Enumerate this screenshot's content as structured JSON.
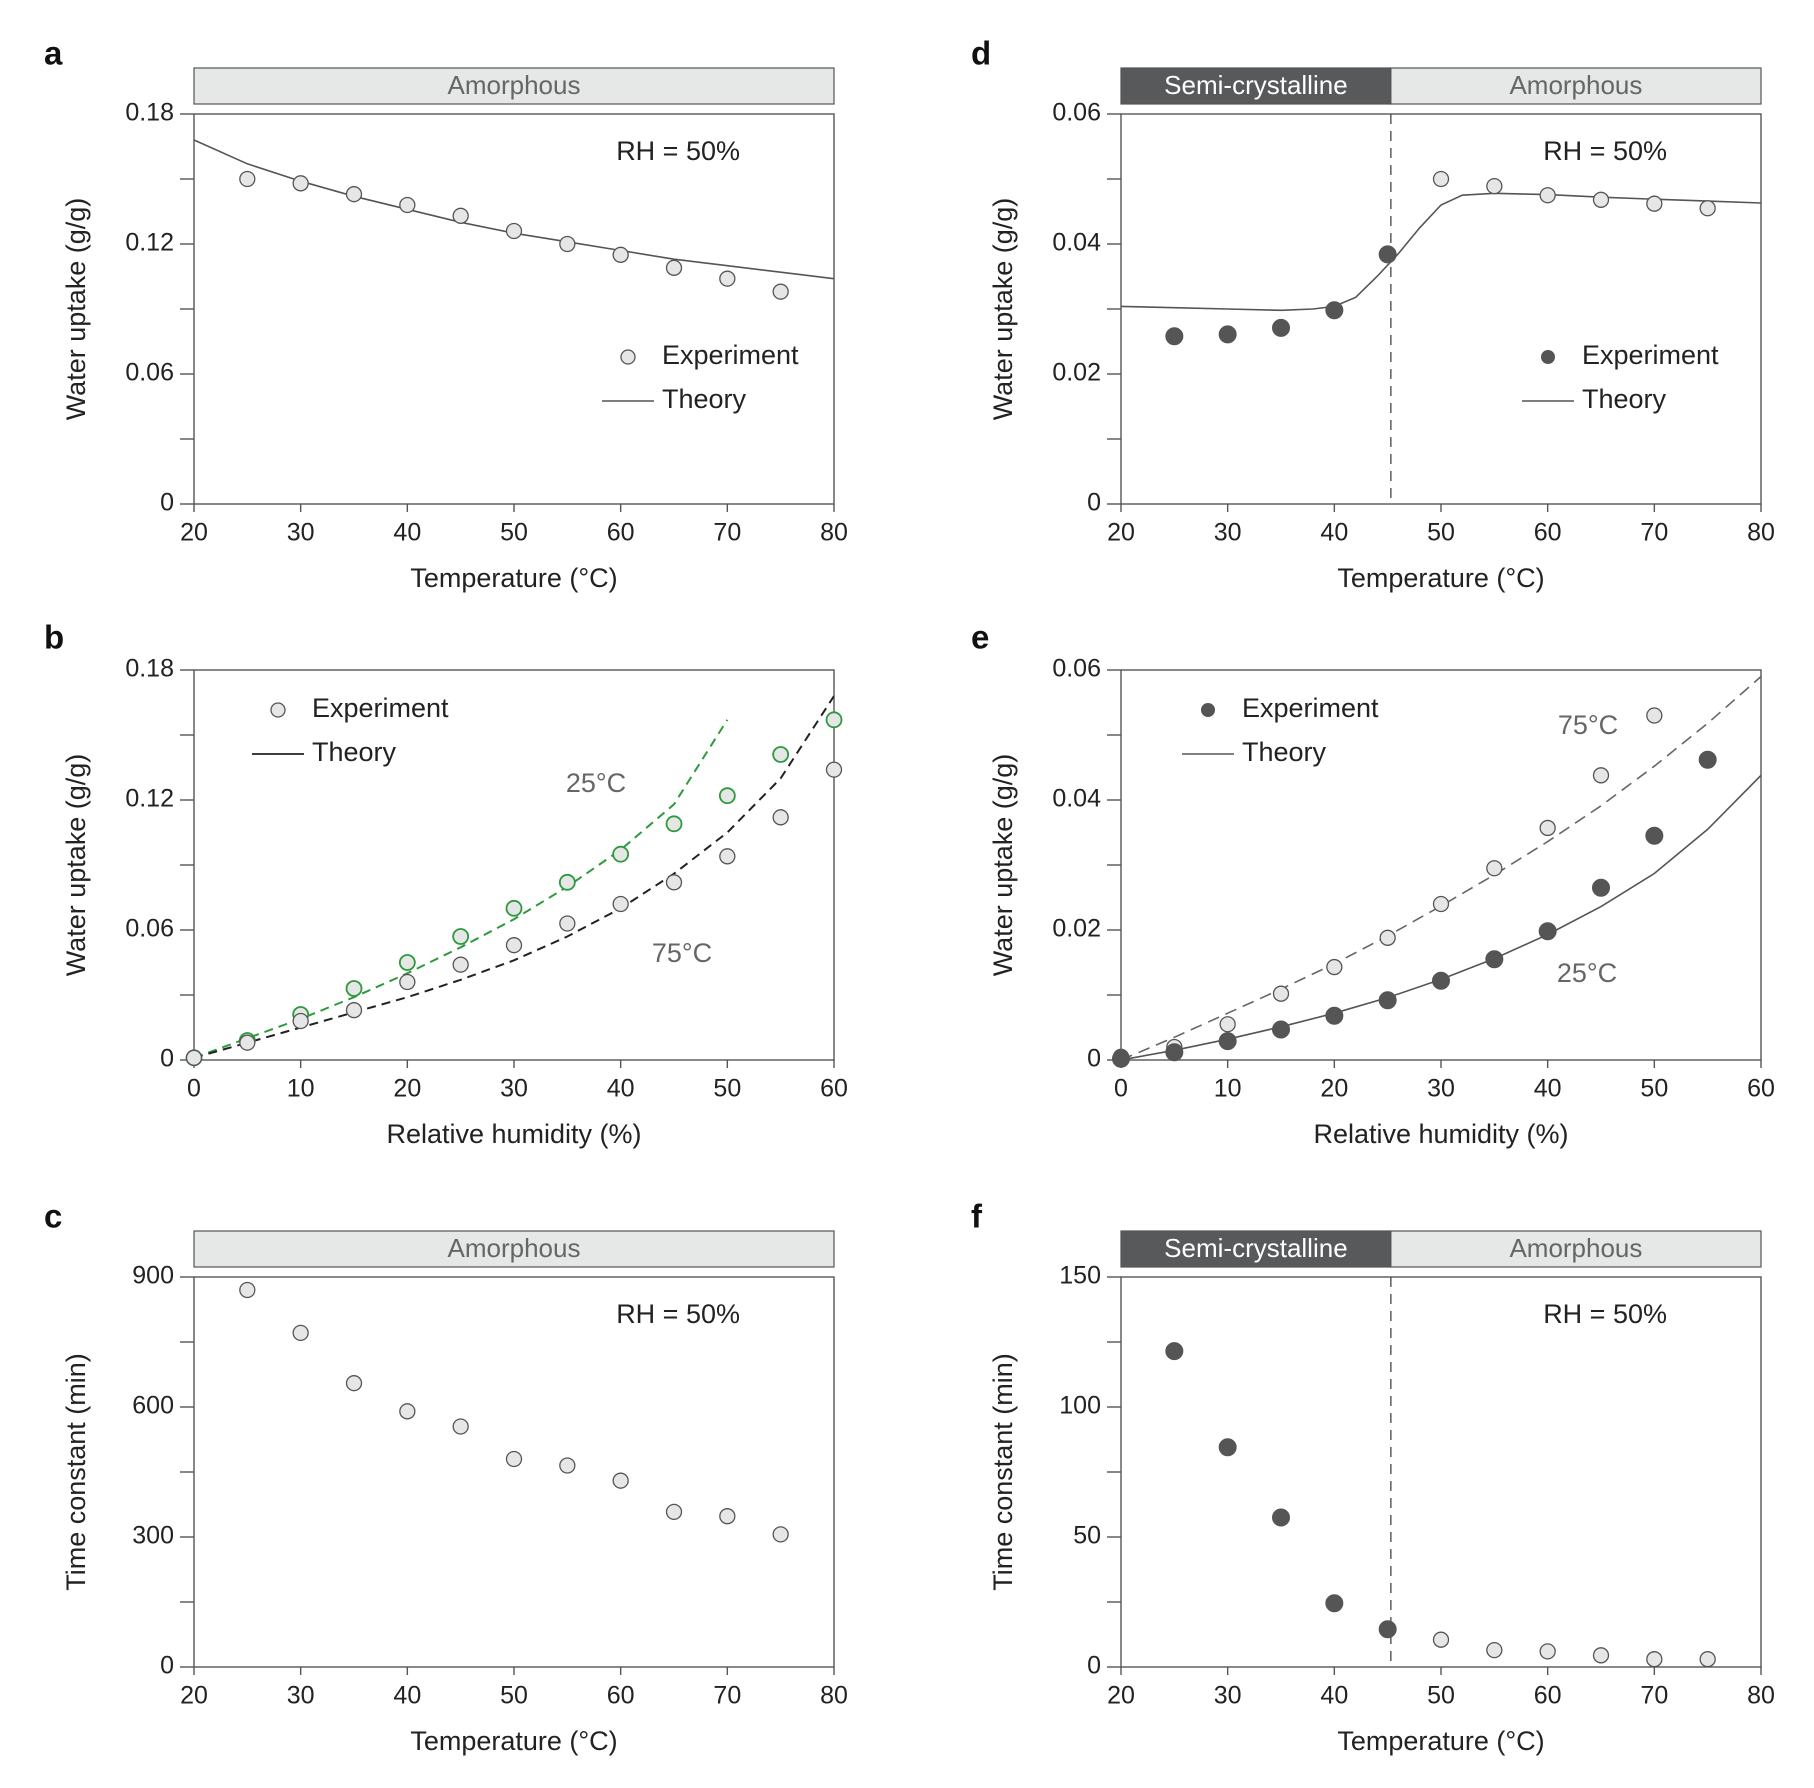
{
  "colors": {
    "axis": "#555555",
    "text": "#222222",
    "label_gray": "#666666",
    "marker_light": "#e6e6e6",
    "marker_dark": "#555555",
    "green": "#2e9a3e",
    "band_light": "#e6e7e7",
    "band_dark": "#58595b"
  },
  "chart_data": [
    {
      "panel": "a",
      "type": "scatter",
      "band": [
        {
          "label": "Amorphous",
          "from": 20,
          "to": 80,
          "style": "light"
        }
      ],
      "xlabel": "Temperature (°C)",
      "ylabel": "Water uptake (g/g)",
      "xlim": [
        20,
        80
      ],
      "ylim": [
        0,
        0.18
      ],
      "xticks": [
        "20",
        "30",
        "40",
        "50",
        "60",
        "70",
        "80"
      ],
      "yticks": [
        "0",
        "0.06",
        "0.12",
        "0.18"
      ],
      "annotations": [
        {
          "text": "RH = 50%"
        }
      ],
      "legend": {
        "position": "center-right",
        "entries": [
          {
            "label": "Experiment",
            "kind": "marker",
            "style": "light"
          },
          {
            "label": "Theory",
            "kind": "line",
            "style": "solid-gray"
          }
        ]
      },
      "series": [
        {
          "name": "Experiment",
          "kind": "scatter",
          "style": "light",
          "x": [
            25,
            30,
            35,
            40,
            45,
            50,
            55,
            60,
            65,
            70,
            75
          ],
          "y": [
            0.15,
            0.148,
            0.143,
            0.138,
            0.133,
            0.126,
            0.12,
            0.115,
            0.109,
            0.104,
            0.098
          ]
        },
        {
          "name": "Theory",
          "kind": "line",
          "style": "solid-gray",
          "x": [
            20,
            25,
            30,
            35,
            40,
            45,
            50,
            55,
            60,
            65,
            70,
            75,
            80
          ],
          "y": [
            0.168,
            0.157,
            0.149,
            0.142,
            0.136,
            0.13,
            0.125,
            0.121,
            0.117,
            0.113,
            0.11,
            0.107,
            0.104
          ]
        }
      ]
    },
    {
      "panel": "b",
      "type": "scatter",
      "xlabel": "Relative humidity (%)",
      "ylabel": "Water uptake (g/g)",
      "xlim": [
        0,
        60
      ],
      "ylim": [
        0,
        0.18
      ],
      "xticks": [
        "0",
        "10",
        "20",
        "30",
        "40",
        "50",
        "60"
      ],
      "yticks": [
        "0",
        "0.06",
        "0.12",
        "0.18"
      ],
      "annotations": [
        {
          "text": "25°C"
        },
        {
          "text": "75°C"
        }
      ],
      "legend": {
        "position": "top-left",
        "entries": [
          {
            "label": "Experiment",
            "kind": "marker",
            "style": "light"
          },
          {
            "label": "Theory",
            "kind": "line",
            "style": "solid-black"
          }
        ]
      },
      "series": [
        {
          "name": "25°C",
          "kind": "scatter",
          "style": "green-open",
          "x": [
            0,
            5,
            10,
            15,
            20,
            25,
            30,
            35,
            40,
            45,
            50,
            55,
            60
          ],
          "y": [
            0.001,
            0.009,
            0.021,
            0.033,
            0.045,
            0.057,
            0.07,
            0.082,
            0.095,
            0.109,
            0.122,
            0.141,
            0.157
          ]
        },
        {
          "name": "75°C",
          "kind": "scatter",
          "style": "light",
          "x": [
            0,
            5,
            10,
            15,
            20,
            25,
            30,
            35,
            40,
            45,
            50,
            55,
            60
          ],
          "y": [
            0.001,
            0.008,
            0.018,
            0.023,
            0.036,
            0.044,
            0.053,
            0.063,
            0.072,
            0.082,
            0.094,
            0.112,
            0.134
          ]
        },
        {
          "name": "25°C",
          "kind": "line",
          "style": "dashed-green",
          "x": [
            0,
            5,
            10,
            15,
            20,
            25,
            30,
            35,
            40,
            45,
            50
          ],
          "y": [
            0.001,
            0.01,
            0.019,
            0.029,
            0.04,
            0.052,
            0.065,
            0.08,
            0.097,
            0.118,
            0.157
          ]
        },
        {
          "name": "75°C",
          "kind": "line",
          "style": "dashed-black",
          "x": [
            0,
            5,
            10,
            15,
            20,
            25,
            30,
            35,
            40,
            45,
            50,
            55,
            60
          ],
          "y": [
            0.001,
            0.008,
            0.015,
            0.022,
            0.029,
            0.037,
            0.046,
            0.057,
            0.07,
            0.086,
            0.105,
            0.13,
            0.168
          ]
        }
      ]
    },
    {
      "panel": "c",
      "type": "scatter",
      "band": [
        {
          "label": "Amorphous",
          "from": 20,
          "to": 80,
          "style": "light"
        }
      ],
      "xlabel": "Temperature (°C)",
      "ylabel": "Time constant (min)",
      "xlim": [
        20,
        80
      ],
      "ylim": [
        0,
        900
      ],
      "xticks": [
        "20",
        "30",
        "40",
        "50",
        "60",
        "70",
        "80"
      ],
      "yticks": [
        "0",
        "300",
        "600",
        "900"
      ],
      "annotations": [
        {
          "text": "RH = 50%"
        }
      ],
      "series": [
        {
          "name": "Experiment",
          "kind": "scatter",
          "style": "light",
          "x": [
            25,
            30,
            35,
            40,
            45,
            50,
            55,
            60,
            65,
            70,
            75
          ],
          "y": [
            870,
            771,
            655,
            590,
            555,
            480,
            465,
            430,
            358,
            348,
            306
          ]
        }
      ]
    },
    {
      "panel": "d",
      "type": "scatter",
      "band": [
        {
          "label": "Semi-crystalline",
          "from": 20,
          "to": 45.3,
          "style": "dark"
        },
        {
          "label": "Amorphous",
          "from": 45.3,
          "to": 80,
          "style": "light"
        }
      ],
      "vline": 45.3,
      "xlabel": "Temperature (°C)",
      "ylabel": "Water uptake (g/g)",
      "xlim": [
        20,
        80
      ],
      "ylim": [
        0,
        0.06
      ],
      "xticks": [
        "20",
        "30",
        "40",
        "50",
        "60",
        "70",
        "80"
      ],
      "yticks": [
        "0",
        "0.02",
        "0.04",
        "0.06"
      ],
      "annotations": [
        {
          "text": "RH = 50%"
        }
      ],
      "legend": {
        "position": "center-right",
        "entries": [
          {
            "label": "Experiment",
            "kind": "marker",
            "style": "dark"
          },
          {
            "label": "Theory",
            "kind": "line",
            "style": "solid-gray"
          }
        ]
      },
      "series": [
        {
          "name": "Experiment",
          "kind": "scatter",
          "style": "dark",
          "x": [
            25,
            30,
            35,
            40,
            45
          ],
          "y": [
            0.0258,
            0.0261,
            0.0271,
            0.0298,
            0.0384
          ]
        },
        {
          "name": "Experiment",
          "kind": "scatter",
          "style": "light",
          "x": [
            50,
            55,
            60,
            65,
            70,
            75
          ],
          "y": [
            0.05,
            0.0489,
            0.0475,
            0.0468,
            0.0462,
            0.0455
          ]
        },
        {
          "name": "Theory",
          "kind": "line",
          "style": "solid-gray",
          "x": [
            20,
            25,
            30,
            35,
            38,
            40,
            42,
            44,
            46,
            48,
            50,
            52,
            55,
            60,
            65,
            70,
            75,
            80
          ],
          "y": [
            0.0304,
            0.0302,
            0.03,
            0.0298,
            0.03,
            0.0304,
            0.0318,
            0.035,
            0.0385,
            0.0425,
            0.046,
            0.0475,
            0.0478,
            0.0476,
            0.0472,
            0.0469,
            0.0466,
            0.0463
          ]
        }
      ]
    },
    {
      "panel": "e",
      "type": "scatter",
      "xlabel": "Relative humidity (%)",
      "ylabel": "Water uptake (g/g)",
      "xlim": [
        0,
        60
      ],
      "ylim": [
        0,
        0.06
      ],
      "xticks": [
        "0",
        "10",
        "20",
        "30",
        "40",
        "50",
        "60"
      ],
      "yticks": [
        "0",
        "0.02",
        "0.04",
        "0.06"
      ],
      "annotations": [
        {
          "text": "75°C"
        },
        {
          "text": "25°C"
        }
      ],
      "legend": {
        "position": "top-left",
        "entries": [
          {
            "label": "Experiment",
            "kind": "marker",
            "style": "dark"
          },
          {
            "label": "Theory",
            "kind": "line",
            "style": "solid-gray"
          }
        ]
      },
      "series": [
        {
          "name": "75°C",
          "kind": "scatter",
          "style": "light",
          "x": [
            0,
            5,
            10,
            15,
            20,
            25,
            30,
            35,
            40,
            45,
            50,
            55
          ],
          "y": [
            0.0005,
            0.002,
            0.0055,
            0.0102,
            0.0143,
            0.0188,
            0.024,
            0.0295,
            0.0357,
            0.0438,
            0.053,
            0.0462
          ]
        },
        {
          "name": "25°C",
          "kind": "scatter",
          "style": "dark",
          "x": [
            0,
            5,
            10,
            15,
            20,
            25,
            30,
            35,
            40,
            45,
            50,
            55
          ],
          "y": [
            0.0002,
            0.0012,
            0.0029,
            0.0047,
            0.0068,
            0.0092,
            0.0122,
            0.0155,
            0.0198,
            0.0265,
            0.0345,
            0.0462
          ]
        },
        {
          "name": "75°C",
          "kind": "line",
          "style": "dashed-gray",
          "x": [
            0,
            5,
            10,
            15,
            20,
            25,
            30,
            35,
            40,
            45,
            50,
            55,
            60
          ],
          "y": [
            0.0,
            0.0035,
            0.0072,
            0.0109,
            0.0148,
            0.0191,
            0.0237,
            0.0285,
            0.0336,
            0.0391,
            0.0452,
            0.0518,
            0.059
          ]
        },
        {
          "name": "25°C",
          "kind": "line",
          "style": "solid-gray",
          "x": [
            0,
            5,
            10,
            15,
            20,
            25,
            30,
            35,
            40,
            45,
            50,
            55,
            60
          ],
          "y": [
            0.0,
            0.0015,
            0.0032,
            0.0051,
            0.0072,
            0.0096,
            0.0124,
            0.0156,
            0.0193,
            0.0236,
            0.0287,
            0.0355,
            0.0438
          ]
        }
      ]
    },
    {
      "panel": "f",
      "type": "scatter",
      "band": [
        {
          "label": "Semi-crystalline",
          "from": 20,
          "to": 45.3,
          "style": "dark"
        },
        {
          "label": "Amorphous",
          "from": 45.3,
          "to": 80,
          "style": "light"
        }
      ],
      "vline": 45.3,
      "xlabel": "Temperature (°C)",
      "ylabel": "Time constant (min)",
      "xlim": [
        20,
        80
      ],
      "ylim": [
        0,
        150
      ],
      "xticks": [
        "20",
        "30",
        "40",
        "50",
        "60",
        "70",
        "80"
      ],
      "yticks": [
        "0",
        "50",
        "100",
        "150"
      ],
      "annotations": [
        {
          "text": "RH = 50%"
        }
      ],
      "series": [
        {
          "name": "Experiment",
          "kind": "scatter",
          "style": "dark",
          "x": [
            25,
            30,
            35,
            40,
            45
          ],
          "y": [
            121.5,
            84.5,
            57.5,
            24.5,
            14.5
          ]
        },
        {
          "name": "Experiment",
          "kind": "scatter",
          "style": "light",
          "x": [
            50,
            55,
            60,
            65,
            70,
            75
          ],
          "y": [
            10.5,
            6.5,
            6.0,
            4.5,
            3.0,
            3.0
          ]
        }
      ]
    }
  ]
}
